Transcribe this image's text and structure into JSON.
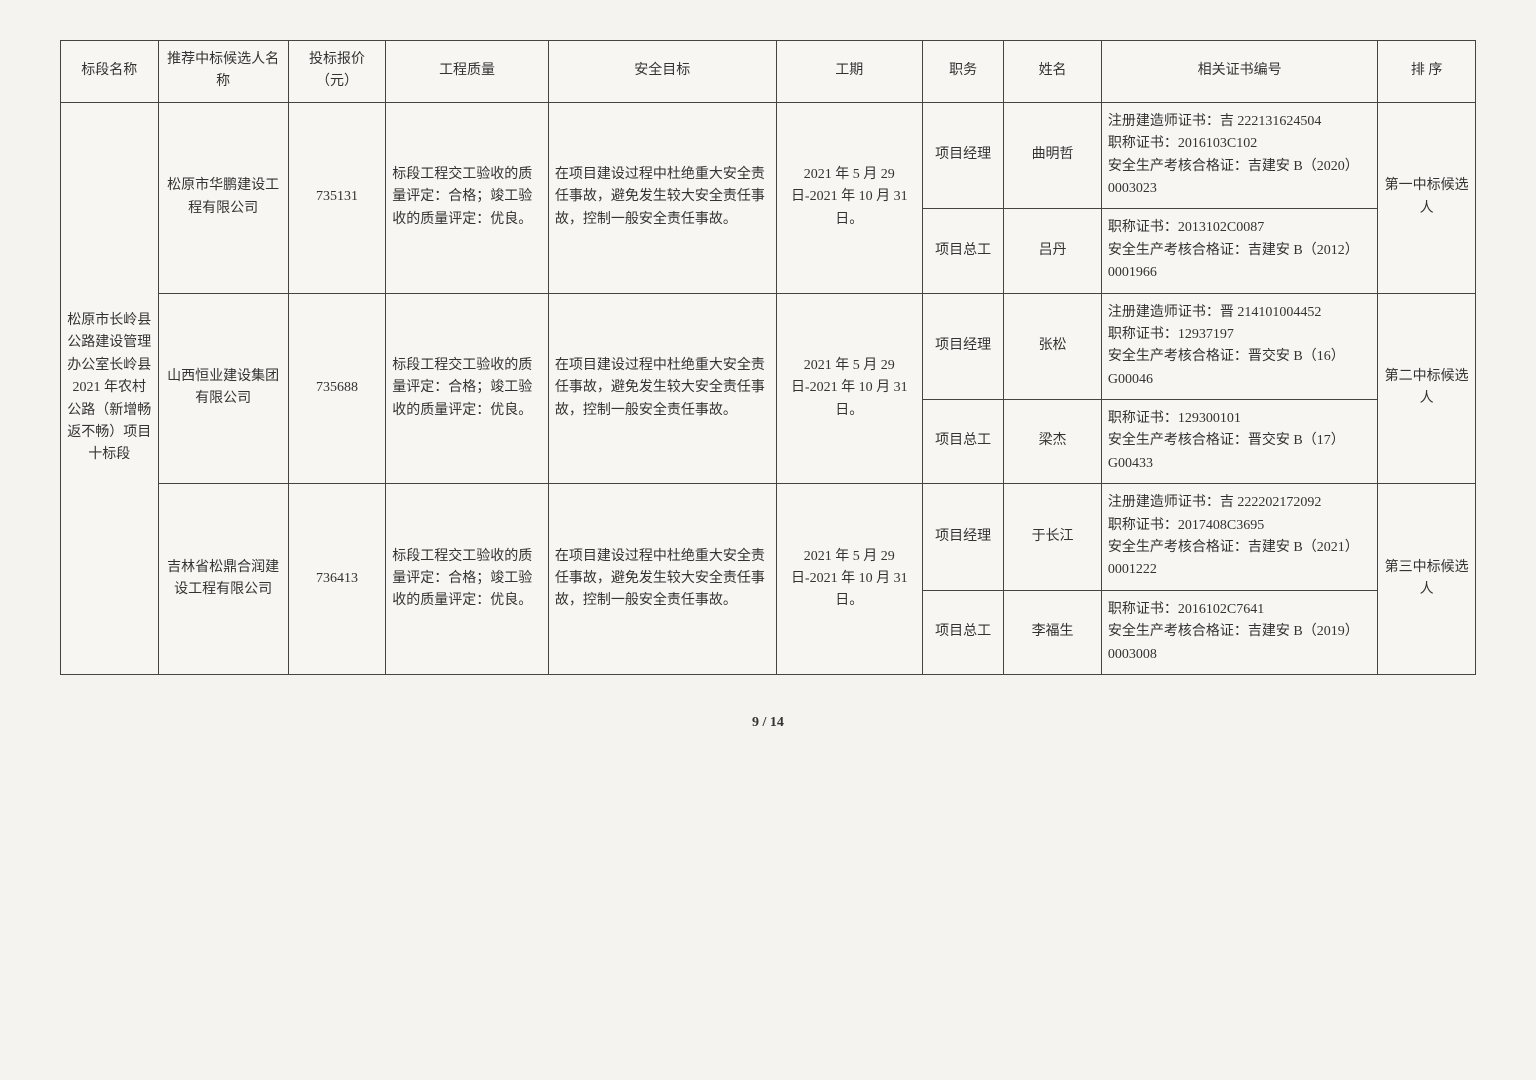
{
  "headers": {
    "section": "标段名称",
    "company": "推荐中标候选人名称",
    "price": "投标报价（元）",
    "quality": "工程质量",
    "safety": "安全目标",
    "period": "工期",
    "role": "职务",
    "name": "姓名",
    "cert": "相关证书编号",
    "rank": "排 序"
  },
  "section_name": "松原市长岭县公路建设管理办公室长岭县 2021 年农村公路（新增畅返不畅）项目十标段",
  "quality_text": "标段工程交工验收的质量评定：合格；竣工验收的质量评定：优良。",
  "safety_text": "在项目建设过程中杜绝重大安全责任事故，避免发生较大安全责任事故，控制一般安全责任事故。",
  "period_text": "2021 年 5 月 29 日-2021 年 10 月 31 日。",
  "candidates": [
    {
      "company": "松原市华鹏建设工程有限公司",
      "price": "735131",
      "rank": "第一中标候选人",
      "people": [
        {
          "role": "项目经理",
          "name": "曲明哲",
          "cert": "注册建造师证书：吉 222131624504\n职称证书：2016103C102\n安全生产考核合格证：吉建安 B（2020）0003023"
        },
        {
          "role": "项目总工",
          "name": "吕丹",
          "cert": "职称证书：2013102C0087\n安全生产考核合格证：吉建安 B（2012）0001966"
        }
      ]
    },
    {
      "company": "山西恒业建设集团有限公司",
      "price": "735688",
      "rank": "第二中标候选人",
      "people": [
        {
          "role": "项目经理",
          "name": "张松",
          "cert": "注册建造师证书：晋 214101004452\n职称证书：12937197\n安全生产考核合格证：晋交安 B（16）G00046"
        },
        {
          "role": "项目总工",
          "name": "梁杰",
          "cert": "职称证书：129300101\n安全生产考核合格证：晋交安 B（17）G00433"
        }
      ]
    },
    {
      "company": "吉林省松鼎合润建设工程有限公司",
      "price": "736413",
      "rank": "第三中标候选人",
      "people": [
        {
          "role": "项目经理",
          "name": "于长江",
          "cert": "注册建造师证书：吉 222202172092\n职称证书：2017408C3695\n安全生产考核合格证：吉建安 B（2021）0001222"
        },
        {
          "role": "项目总工",
          "name": "李福生",
          "cert": "职称证书：2016102C7641\n安全生产考核合格证：吉建安 B（2019）0003008"
        }
      ]
    }
  ],
  "footer": "9 / 14"
}
